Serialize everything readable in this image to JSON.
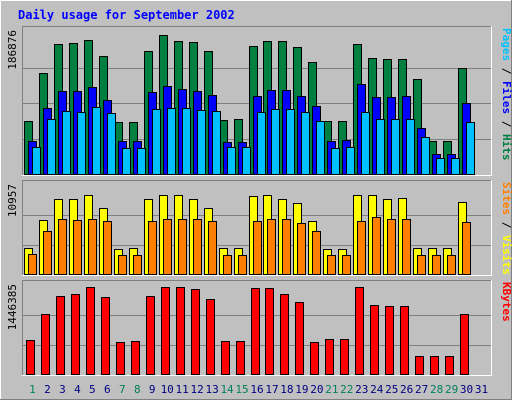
{
  "chart_data": [
    {
      "type": "bar",
      "panel": "hits-files-pages",
      "title": "Daily usage for September 2002",
      "ymax_label": "186876",
      "ylim": [
        0,
        186876
      ],
      "categories": [
        "1",
        "2",
        "3",
        "4",
        "5",
        "6",
        "7",
        "8",
        "9",
        "10",
        "11",
        "12",
        "13",
        "14",
        "15",
        "16",
        "17",
        "18",
        "19",
        "20",
        "21",
        "22",
        "23",
        "24",
        "25",
        "26",
        "27",
        "28",
        "29",
        "30",
        "31"
      ],
      "weekend_days": [
        "1",
        "7",
        "8",
        "14",
        "15",
        "21",
        "22",
        "28",
        "29"
      ],
      "series": [
        {
          "name": "Hits",
          "color": "#008040",
          "values": [
            70000,
            133000,
            171000,
            173000,
            176000,
            155000,
            68000,
            68000,
            162000,
            183000,
            175000,
            174000,
            162000,
            71000,
            72000,
            169000,
            175000,
            175000,
            167000,
            148000,
            70000,
            70000,
            171000,
            153000,
            151000,
            151000,
            125000,
            43000,
            44000,
            140000,
            0
          ]
        },
        {
          "name": "Files",
          "color": "#0000ff",
          "values": [
            43000,
            87000,
            109000,
            109000,
            115000,
            97000,
            43000,
            43000,
            108000,
            116000,
            112000,
            109000,
            104000,
            42000,
            42000,
            103000,
            111000,
            110000,
            102000,
            90000,
            44000,
            45000,
            118000,
            101000,
            101000,
            103000,
            60000,
            26000,
            26000,
            93000,
            0
          ]
        },
        {
          "name": "Pages",
          "color": "#00c0ff",
          "values": [
            35000,
            72000,
            83000,
            82000,
            88000,
            80000,
            34000,
            34000,
            85000,
            87000,
            87000,
            84000,
            83000,
            35000,
            35000,
            82000,
            85000,
            85000,
            82000,
            70000,
            34000,
            35000,
            82000,
            72000,
            73000,
            73000,
            49000,
            21000,
            21000,
            69000,
            0
          ]
        }
      ],
      "right_label": [
        {
          "text": "Pages",
          "color": "#00c0ff"
        },
        {
          "text": " / ",
          "color": "#000000"
        },
        {
          "text": "Files",
          "color": "#0000ff"
        },
        {
          "text": " / ",
          "color": "#000000"
        },
        {
          "text": "Hits",
          "color": "#008040"
        }
      ]
    },
    {
      "type": "bar",
      "panel": "visits-sites",
      "ymax_label": "10957",
      "ylim": [
        0,
        10957
      ],
      "series": [
        {
          "name": "Visits",
          "color": "#ffff00",
          "values": [
            3200,
            6700,
            9300,
            9400,
            9800,
            8200,
            3100,
            3200,
            9300,
            9800,
            9800,
            9400,
            8200,
            3200,
            3200,
            9700,
            9800,
            9400,
            8900,
            6600,
            3100,
            3100,
            9800,
            9800,
            9400,
            9500,
            3200,
            3200,
            3200,
            9000,
            0
          ]
        },
        {
          "name": "Sites",
          "color": "#ff8000",
          "values": [
            2500,
            5400,
            6800,
            6700,
            6900,
            6600,
            2400,
            2400,
            6600,
            6900,
            6900,
            6800,
            6600,
            2400,
            2400,
            6600,
            6900,
            6800,
            6400,
            5400,
            2400,
            2400,
            6600,
            7100,
            6900,
            6900,
            2400,
            2400,
            2400,
            6500,
            0
          ]
        }
      ],
      "right_label": [
        {
          "text": "Sites",
          "color": "#ff8000"
        },
        {
          "text": " / ",
          "color": "#000000"
        },
        {
          "text": "Visits",
          "color": "#ffff00"
        }
      ]
    },
    {
      "type": "bar",
      "panel": "kbytes",
      "ymax_label": "1446385",
      "ylim": [
        0,
        1446385
      ],
      "series": [
        {
          "name": "KBytes",
          "color": "#ff0000",
          "values": [
            560000,
            990000,
            1290000,
            1310000,
            1430000,
            1260000,
            530000,
            540000,
            1290000,
            1430000,
            1430000,
            1390000,
            1240000,
            550000,
            540000,
            1410000,
            1420000,
            1310000,
            1190000,
            520000,
            570000,
            580000,
            1430000,
            1140000,
            1120000,
            1110000,
            290000,
            290000,
            290000,
            980000,
            0
          ]
        }
      ],
      "right_label": [
        {
          "text": "KBytes",
          "color": "#ff0000"
        }
      ]
    }
  ],
  "colors": {
    "frame_background": "#c0c0c0",
    "plot_background": "#c0c0c0",
    "title": "#0000ff",
    "weekday_label": "#000080",
    "weekend_label": "#00805c"
  }
}
